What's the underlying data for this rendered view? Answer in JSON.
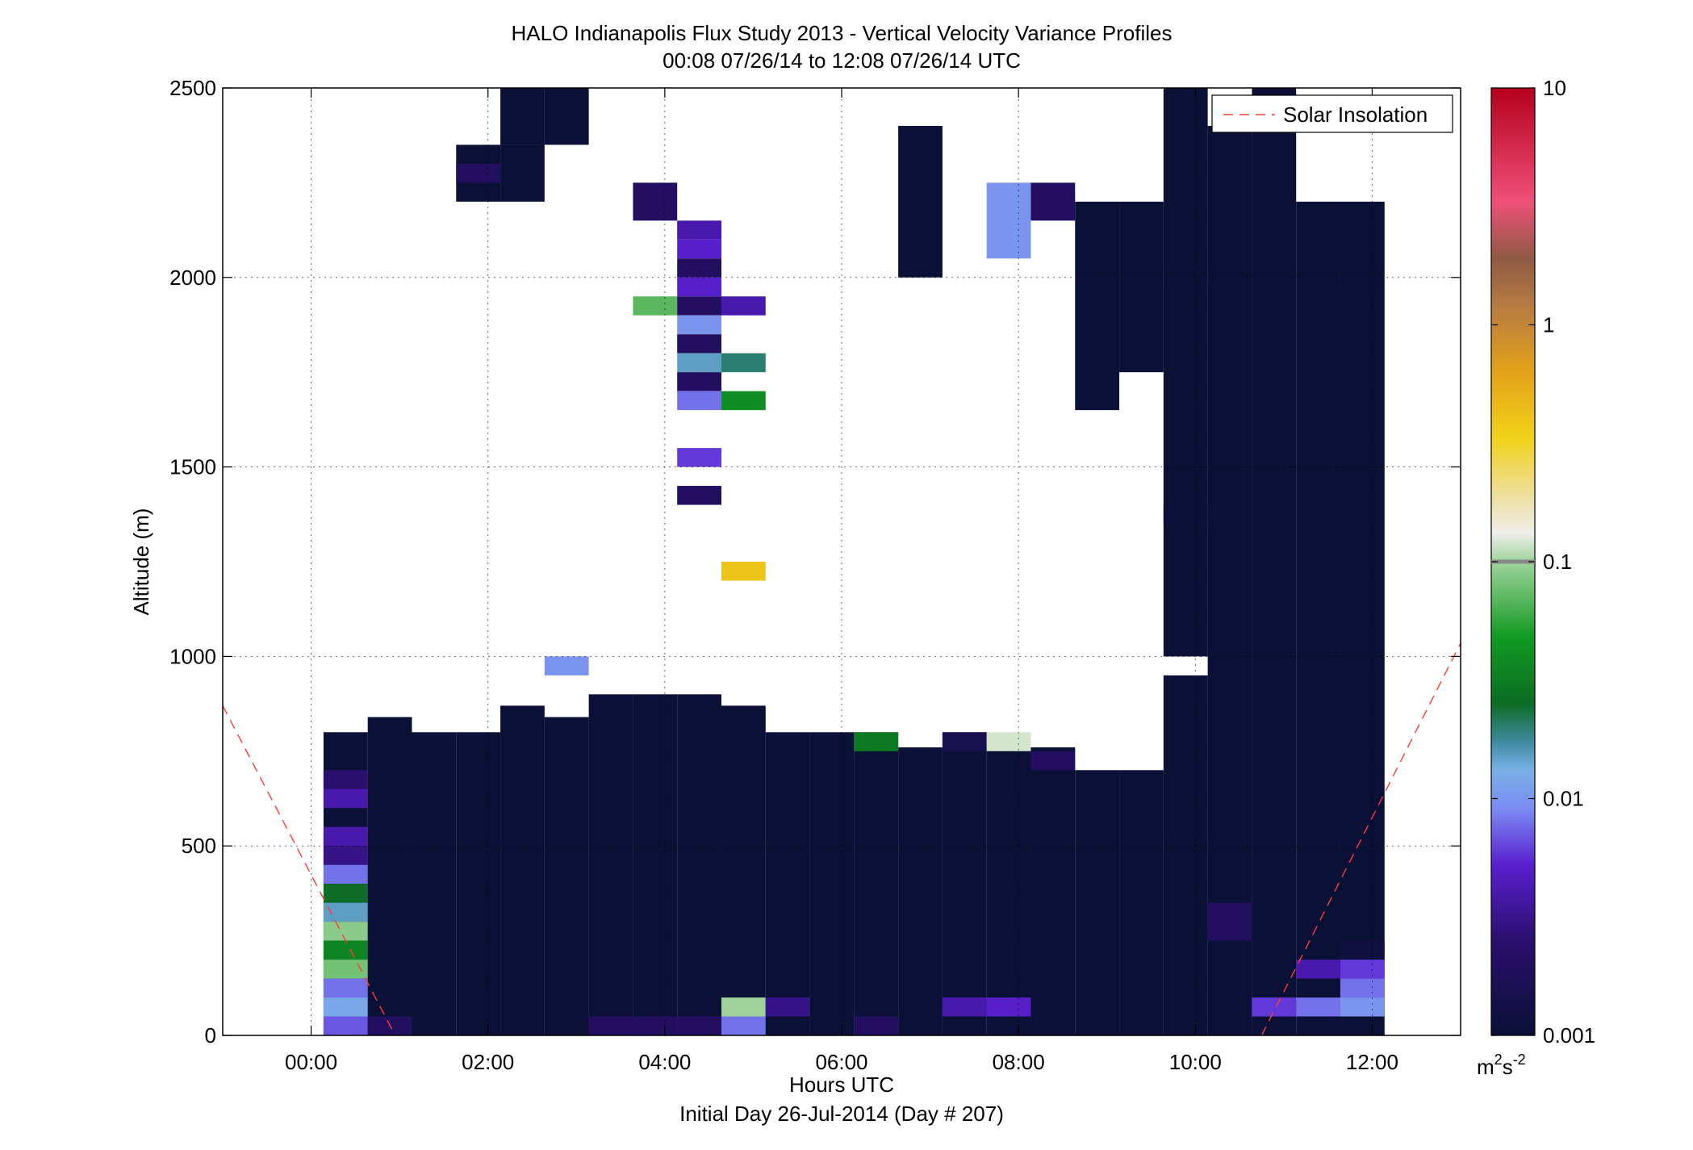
{
  "chart_data": {
    "type": "heatmap",
    "title": "HALO Indianapolis Flux Study 2013 - Vertical Velocity Variance Profiles",
    "subtitle": "00:08 07/26/14 to 12:08 07/26/14  UTC",
    "xlabel": "Hours UTC",
    "xlabel2": "Initial Day 26-Jul-2014 (Day # 207)",
    "ylabel": "Altitude (m)",
    "xlim": [
      -1,
      13
    ],
    "ylim": [
      0,
      2500
    ],
    "x_ticks": [
      0,
      2,
      4,
      6,
      8,
      10,
      12
    ],
    "x_tick_labels": [
      "00:00",
      "02:00",
      "04:00",
      "06:00",
      "08:00",
      "10:00",
      "12:00"
    ],
    "y_ticks": [
      0,
      500,
      1000,
      1500,
      2000,
      2500
    ],
    "y_tick_labels": [
      "0",
      "500",
      "1000",
      "1500",
      "2000",
      "2500"
    ],
    "grid": true,
    "legend": {
      "entries": [
        "Solar Insolation"
      ],
      "placement": "top-right"
    },
    "colorbar": {
      "scale": "log",
      "range": [
        0.001,
        10
      ],
      "ticks": [
        0.001,
        0.01,
        0.1,
        1,
        10
      ],
      "tick_labels": [
        "0.001",
        "0.01",
        "0.1",
        "1",
        "10"
      ],
      "unit_base": "m",
      "unit_base_exp": "2",
      "unit_mid": "s",
      "unit_mid_exp": "-2"
    },
    "cell_height_m": 75,
    "columns_description": "Columns at approx. 0.5 h spacing; rows list [altitude_bottom_m, altitude_top_m, value_m2s-2]",
    "columns": [
      {
        "t": 0.14,
        "rows": [
          [
            0,
            800,
            0.001
          ]
        ]
      },
      {
        "t": 0.14,
        "rows": [
          [
            650,
            700,
            0.0025
          ],
          [
            600,
            650,
            0.004
          ],
          [
            500,
            550,
            0.004
          ],
          [
            450,
            500,
            0.003
          ],
          [
            400,
            450,
            0.008
          ],
          [
            350,
            400,
            0.025
          ],
          [
            300,
            350,
            0.015
          ],
          [
            250,
            300,
            0.09
          ],
          [
            200,
            250,
            0.035
          ],
          [
            150,
            200,
            0.08
          ],
          [
            100,
            150,
            0.008
          ],
          [
            50,
            100,
            0.012
          ],
          [
            0,
            50,
            0.007
          ]
        ]
      },
      {
        "t": 0.64,
        "rows": [
          [
            0,
            840,
            0.001
          ],
          [
            0,
            50,
            0.002
          ]
        ]
      },
      {
        "t": 1.14,
        "rows": [
          [
            0,
            800,
            0.001
          ]
        ]
      },
      {
        "t": 1.64,
        "rows": [
          [
            0,
            800,
            0.001
          ],
          [
            2200,
            2350,
            0.001
          ],
          [
            2250,
            2300,
            0.002
          ]
        ]
      },
      {
        "t": 2.14,
        "rows": [
          [
            0,
            870,
            0.001
          ],
          [
            2350,
            2500,
            0.001
          ],
          [
            2200,
            2350,
            0.001
          ]
        ]
      },
      {
        "t": 2.64,
        "rows": [
          [
            0,
            840,
            0.001
          ],
          [
            950,
            1000,
            0.01
          ],
          [
            2350,
            2500,
            0.001
          ]
        ]
      },
      {
        "t": 3.14,
        "rows": [
          [
            0,
            900,
            0.001
          ],
          [
            0,
            50,
            0.002
          ]
        ]
      },
      {
        "t": 3.64,
        "rows": [
          [
            0,
            900,
            0.001
          ],
          [
            0,
            50,
            0.002
          ],
          [
            2150,
            2250,
            0.002
          ],
          [
            1900,
            1950,
            0.07
          ]
        ]
      },
      {
        "t": 4.14,
        "rows": [
          [
            0,
            900,
            0.001
          ],
          [
            0,
            50,
            0.002
          ],
          [
            2100,
            2150,
            0.004
          ],
          [
            2050,
            2100,
            0.005
          ],
          [
            2000,
            2050,
            0.002
          ],
          [
            1950,
            2000,
            0.005
          ],
          [
            1900,
            1950,
            0.002
          ],
          [
            1850,
            1900,
            0.01
          ],
          [
            1800,
            1850,
            0.002
          ],
          [
            1750,
            1800,
            0.015
          ],
          [
            1700,
            1750,
            0.002
          ],
          [
            1650,
            1700,
            0.008
          ],
          [
            1500,
            1550,
            0.006
          ],
          [
            1400,
            1450,
            0.002
          ]
        ]
      },
      {
        "t": 4.64,
        "rows": [
          [
            0,
            870,
            0.001
          ],
          [
            0,
            50,
            0.008
          ],
          [
            50,
            100,
            0.1
          ],
          [
            1900,
            1950,
            0.004
          ],
          [
            1750,
            1800,
            0.02
          ],
          [
            1650,
            1700,
            0.04
          ],
          [
            1200,
            1250,
            0.4
          ]
        ]
      },
      {
        "t": 5.14,
        "rows": [
          [
            0,
            800,
            0.001
          ],
          [
            50,
            100,
            0.003
          ]
        ]
      },
      {
        "t": 5.64,
        "rows": [
          [
            0,
            800,
            0.001
          ]
        ]
      },
      {
        "t": 6.14,
        "rows": [
          [
            0,
            800,
            0.001
          ],
          [
            0,
            50,
            0.002
          ],
          [
            750,
            800,
            0.03
          ]
        ]
      },
      {
        "t": 6.64,
        "rows": [
          [
            0,
            760,
            0.001
          ],
          [
            2000,
            2400,
            0.001
          ]
        ]
      },
      {
        "t": 7.14,
        "rows": [
          [
            0,
            800,
            0.001
          ],
          [
            50,
            100,
            0.004
          ],
          [
            750,
            800,
            0.0015
          ]
        ]
      },
      {
        "t": 7.64,
        "rows": [
          [
            0,
            760,
            0.001
          ],
          [
            50,
            100,
            0.005
          ],
          [
            750,
            800,
            0.12
          ],
          [
            2050,
            2250,
            0.01
          ]
        ]
      },
      {
        "t": 8.14,
        "rows": [
          [
            0,
            760,
            0.001
          ],
          [
            700,
            750,
            0.002
          ],
          [
            2150,
            2250,
            0.002
          ]
        ]
      },
      {
        "t": 8.64,
        "rows": [
          [
            0,
            700,
            0.001
          ],
          [
            1650,
            2200,
            0.001
          ]
        ]
      },
      {
        "t": 9.14,
        "rows": [
          [
            0,
            700,
            0.001
          ],
          [
            1750,
            2200,
            0.001
          ]
        ]
      },
      {
        "t": 9.64,
        "rows": [
          [
            0,
            950,
            0.001
          ],
          [
            1350,
            1400,
            0.003
          ],
          [
            1000,
            2500,
            0.001
          ]
        ]
      },
      {
        "t": 10.14,
        "rows": [
          [
            0,
            2400,
            0.001
          ],
          [
            250,
            350,
            0.002
          ]
        ]
      },
      {
        "t": 10.64,
        "rows": [
          [
            0,
            2500,
            0.001
          ],
          [
            50,
            100,
            0.006
          ]
        ]
      },
      {
        "t": 11.14,
        "rows": [
          [
            0,
            2200,
            0.001
          ],
          [
            50,
            100,
            0.008
          ],
          [
            150,
            200,
            0.004
          ]
        ]
      },
      {
        "t": 11.64,
        "rows": [
          [
            0,
            2200,
            0.001
          ],
          [
            50,
            100,
            0.01
          ],
          [
            100,
            150,
            0.008
          ],
          [
            150,
            200,
            0.006
          ],
          [
            200,
            250,
            0.0012
          ]
        ]
      }
    ]
  }
}
